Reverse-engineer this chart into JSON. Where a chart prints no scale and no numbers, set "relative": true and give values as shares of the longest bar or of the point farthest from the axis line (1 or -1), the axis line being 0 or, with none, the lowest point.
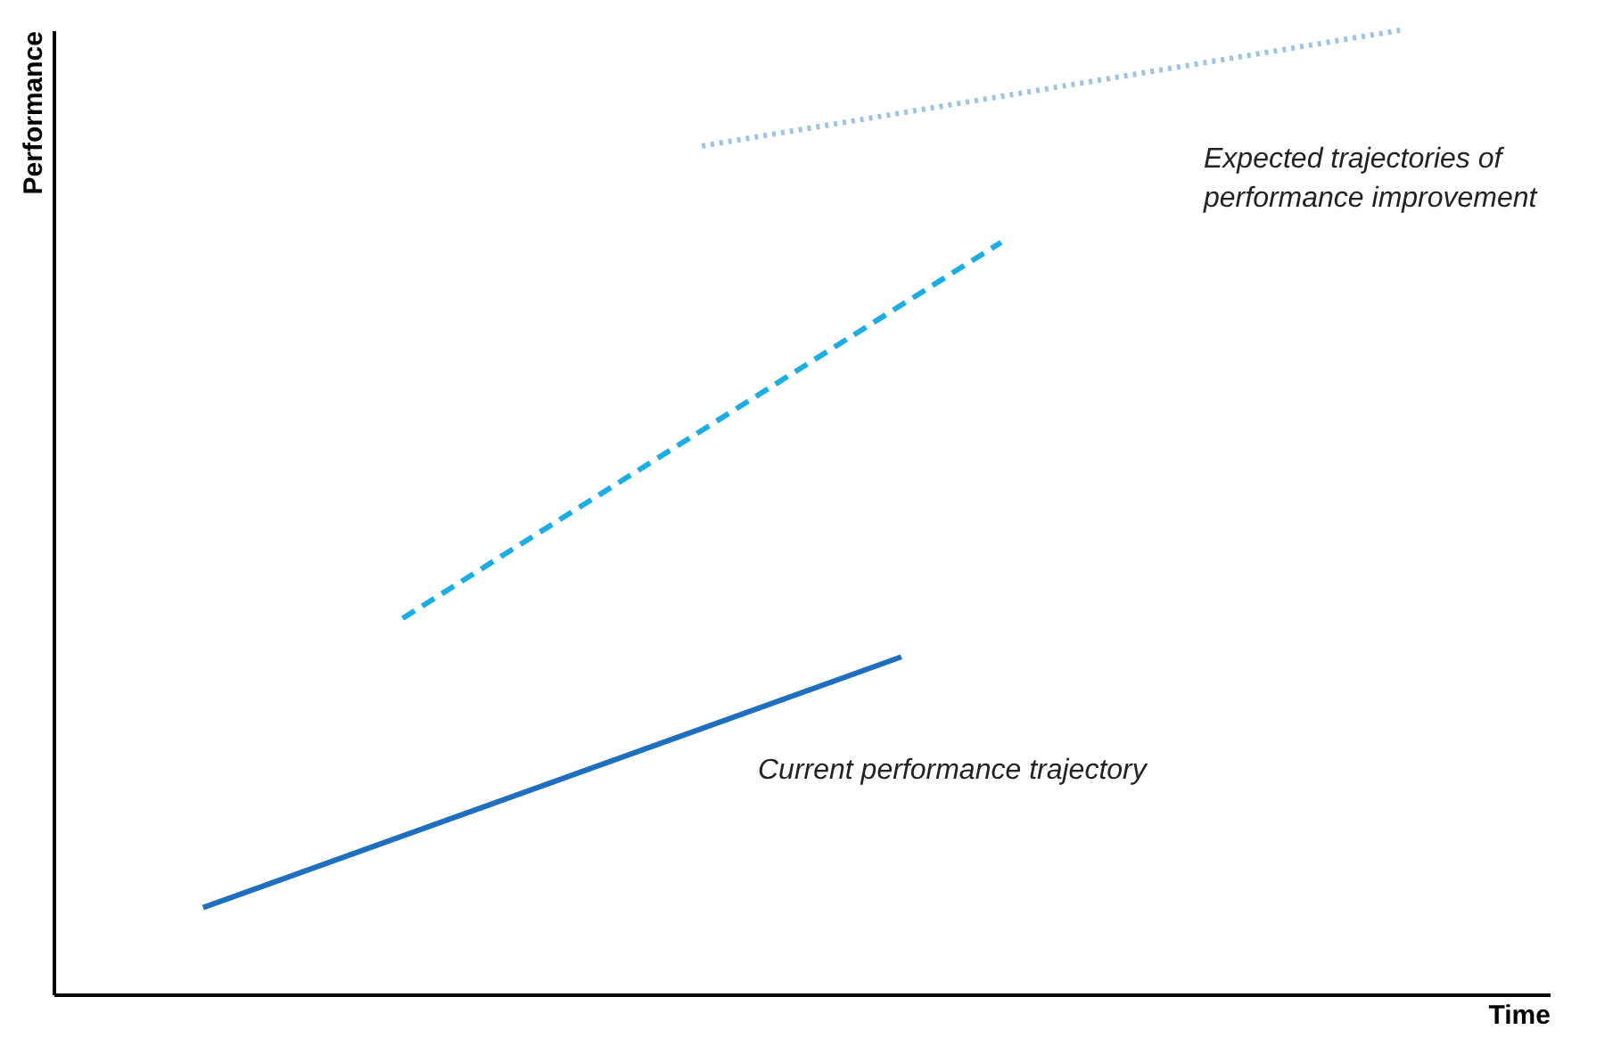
{
  "chart_data": {
    "type": "line",
    "relative": true,
    "xlabel": "Time",
    "ylabel": "Performance",
    "categories": [
      null,
      null,
      null,
      null,
      null,
      null,
      null,
      null,
      null,
      null,
      null,
      null,
      null,
      null,
      null
    ],
    "series": [
      {
        "color": "#1f6fc0",
        "line_style": "solid",
        "values": [
          null,
          0.09,
          null,
          null,
          null,
          null,
          null,
          null,
          0.35,
          null,
          null,
          null,
          null,
          null,
          null
        ]
      },
      {
        "color": "#1aaee6",
        "line_style": "dashed",
        "values": [
          null,
          null,
          null,
          0.39,
          null,
          null,
          null,
          null,
          null,
          0.78,
          null,
          null,
          null,
          null,
          null
        ]
      },
      {
        "color": "#9dc3e6",
        "line_style": "dotted",
        "values": [
          null,
          null,
          null,
          null,
          null,
          null,
          0.88,
          null,
          null,
          null,
          null,
          null,
          null,
          1.0,
          null
        ]
      }
    ],
    "annotations": [
      "Current performance trajectory",
      "Expected trajectories of performance improvement"
    ],
    "grid": false,
    "marker": "none"
  }
}
